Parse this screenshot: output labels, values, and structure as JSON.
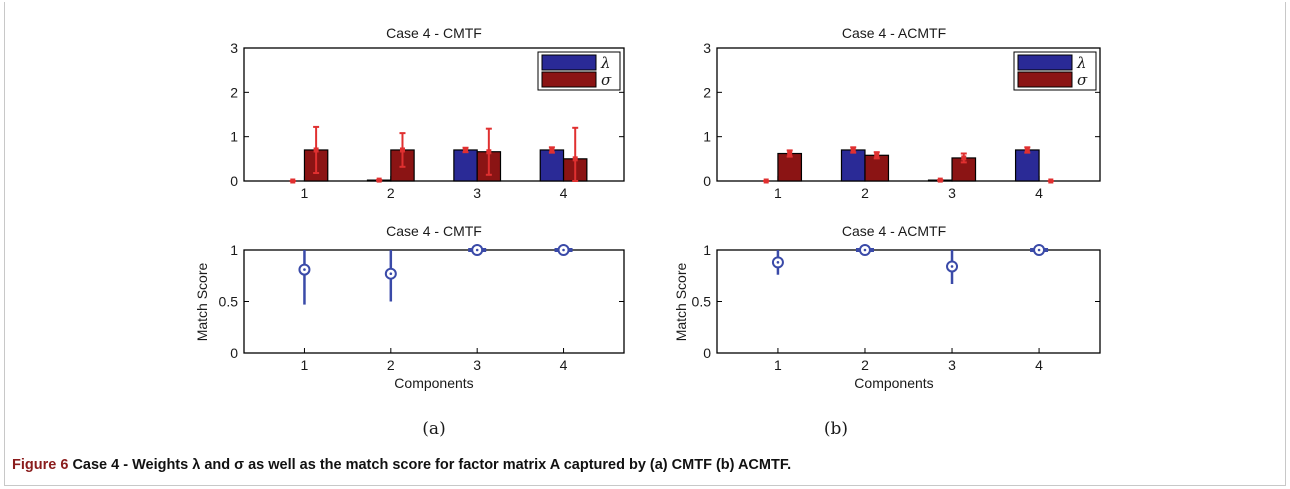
{
  "figure": {
    "caption_label": "Figure 6",
    "caption_text": "Case 4 - Weights λ and σ as well as the match score for factor matrix A captured by (a) CMTF (b) ACMTF."
  },
  "colors": {
    "lambda_bar": "#2a2a96",
    "sigma_bar": "#8b1414",
    "weight_errorbar": "#e03030",
    "match_marker": "#3a4aa8"
  },
  "chart_data": [
    {
      "type": "bar",
      "title": "Case 4 - CMTF",
      "categories": [
        "1",
        "2",
        "3",
        "4"
      ],
      "yticks": [
        "0",
        "1",
        "2",
        "3"
      ],
      "ylim": [
        0,
        3
      ],
      "legend": {
        "placement": "top-right",
        "entries": [
          "λ",
          "σ"
        ]
      },
      "series": [
        {
          "name": "λ",
          "values": [
            0.0,
            0.02,
            0.7,
            0.7
          ],
          "err": [
            0.0,
            0.0,
            0.05,
            0.06
          ]
        },
        {
          "name": "σ",
          "values": [
            0.7,
            0.7,
            0.66,
            0.5
          ],
          "err": [
            0.52,
            0.38,
            0.52,
            0.7
          ]
        }
      ]
    },
    {
      "type": "bar",
      "title": "Case 4 - ACMTF",
      "categories": [
        "1",
        "2",
        "3",
        "4"
      ],
      "yticks": [
        "0",
        "1",
        "2",
        "3"
      ],
      "ylim": [
        0,
        3
      ],
      "legend": {
        "placement": "top-right",
        "entries": [
          "λ",
          "σ"
        ]
      },
      "series": [
        {
          "name": "λ",
          "values": [
            0.0,
            0.7,
            0.02,
            0.7
          ],
          "err": [
            0.0,
            0.06,
            0.0,
            0.06
          ]
        },
        {
          "name": "σ",
          "values": [
            0.62,
            0.58,
            0.52,
            0.0
          ],
          "err": [
            0.07,
            0.07,
            0.1,
            0.0
          ]
        }
      ]
    },
    {
      "type": "scatter",
      "title": "Case 4 - CMTF",
      "xlabel": "Components",
      "ylabel": "Match Score",
      "x": [
        1,
        2,
        3,
        4
      ],
      "xticks": [
        "1",
        "2",
        "3",
        "4"
      ],
      "yticks": [
        "0",
        "0.5",
        "1"
      ],
      "ylim": [
        0,
        1
      ],
      "values": [
        0.81,
        0.77,
        1.0,
        1.0
      ],
      "err_low": [
        0.47,
        0.5,
        0.99,
        0.99
      ],
      "err_high": [
        1.0,
        1.0,
        1.0,
        1.0
      ],
      "sublabel": "(a)"
    },
    {
      "type": "scatter",
      "title": "Case 4 - ACMTF",
      "xlabel": "Components",
      "ylabel": "Match Score",
      "x": [
        1,
        2,
        3,
        4
      ],
      "xticks": [
        "1",
        "2",
        "3",
        "4"
      ],
      "yticks": [
        "0",
        "0.5",
        "1"
      ],
      "ylim": [
        0,
        1
      ],
      "values": [
        0.88,
        1.0,
        0.84,
        1.0
      ],
      "err_low": [
        0.76,
        0.99,
        0.67,
        0.99
      ],
      "err_high": [
        1.0,
        1.0,
        1.0,
        1.0
      ],
      "sublabel": "(b)"
    }
  ]
}
